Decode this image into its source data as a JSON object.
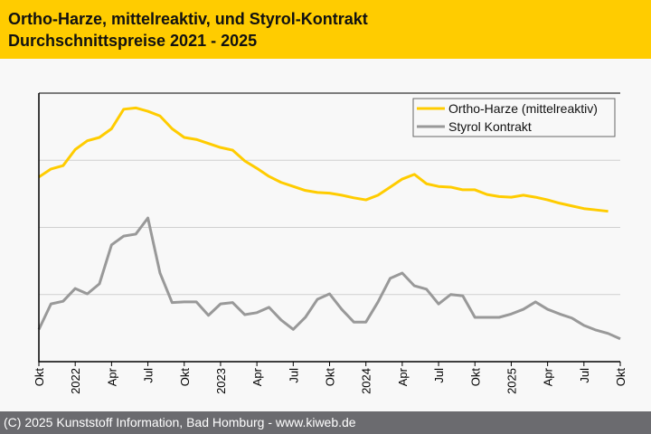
{
  "header": {
    "title_line1": "Ortho-Harze, mittelreaktiv, und Styrol-Kontrakt",
    "title_line2": "Durchschnittspreise 2021 - 2025"
  },
  "footer": {
    "copyright": "(C) 2025 Kunststoff Information, Bad Homburg - www.kiweb.de"
  },
  "chart_data": {
    "type": "line",
    "title": "Ortho-Harze, mittelreaktiv, und Styrol-Kontrakt Durchschnittspreise 2021 - 2025",
    "xlabel": "",
    "ylabel": "",
    "x_range": [
      "Okt 2021",
      "Okt 2025"
    ],
    "ylim": [
      0,
      4
    ],
    "y_unit_note": "relative index (no y tick labels shown)",
    "grid": true,
    "legend_position": "top-right",
    "x_ticks": [
      {
        "month": 0,
        "label": "Okt"
      },
      {
        "month": 3,
        "label": "2022"
      },
      {
        "month": 6,
        "label": "Apr"
      },
      {
        "month": 9,
        "label": "Jul"
      },
      {
        "month": 12,
        "label": "Okt"
      },
      {
        "month": 15,
        "label": "2023"
      },
      {
        "month": 18,
        "label": "Apr"
      },
      {
        "month": 21,
        "label": "Jul"
      },
      {
        "month": 24,
        "label": "Okt"
      },
      {
        "month": 27,
        "label": "2024"
      },
      {
        "month": 30,
        "label": "Apr"
      },
      {
        "month": 33,
        "label": "Jul"
      },
      {
        "month": 36,
        "label": "Okt"
      },
      {
        "month": 39,
        "label": "2025"
      },
      {
        "month": 42,
        "label": "Apr"
      },
      {
        "month": 45,
        "label": "Jul"
      },
      {
        "month": 48,
        "label": "Okt"
      }
    ],
    "series": [
      {
        "name": "Ortho-Harze (mittelreaktiv)",
        "color": "#ffcc00",
        "values": [
          2.75,
          2.87,
          2.92,
          3.16,
          3.29,
          3.34,
          3.47,
          3.76,
          3.78,
          3.73,
          3.66,
          3.47,
          3.34,
          3.31,
          3.25,
          3.19,
          3.15,
          2.99,
          2.88,
          2.76,
          2.67,
          2.61,
          2.55,
          2.52,
          2.51,
          2.48,
          2.44,
          2.41,
          2.48,
          2.6,
          2.72,
          2.79,
          2.65,
          2.61,
          2.6,
          2.56,
          2.56,
          2.49,
          2.46,
          2.45,
          2.48,
          2.45,
          2.41,
          2.36,
          2.32,
          2.28,
          2.26,
          2.24
        ]
      },
      {
        "name": "Styrol Kontrakt",
        "color": "#999999",
        "values": [
          0.48,
          0.86,
          0.9,
          1.09,
          1.01,
          1.16,
          1.74,
          1.87,
          1.9,
          2.14,
          1.32,
          0.88,
          0.89,
          0.89,
          0.69,
          0.86,
          0.88,
          0.7,
          0.73,
          0.81,
          0.62,
          0.48,
          0.66,
          0.93,
          1.01,
          0.78,
          0.59,
          0.59,
          0.89,
          1.24,
          1.32,
          1.13,
          1.08,
          0.86,
          1.0,
          0.98,
          0.66,
          0.66,
          0.66,
          0.71,
          0.78,
          0.89,
          0.78,
          0.71,
          0.65,
          0.54,
          0.47,
          0.42,
          0.34
        ]
      }
    ]
  }
}
